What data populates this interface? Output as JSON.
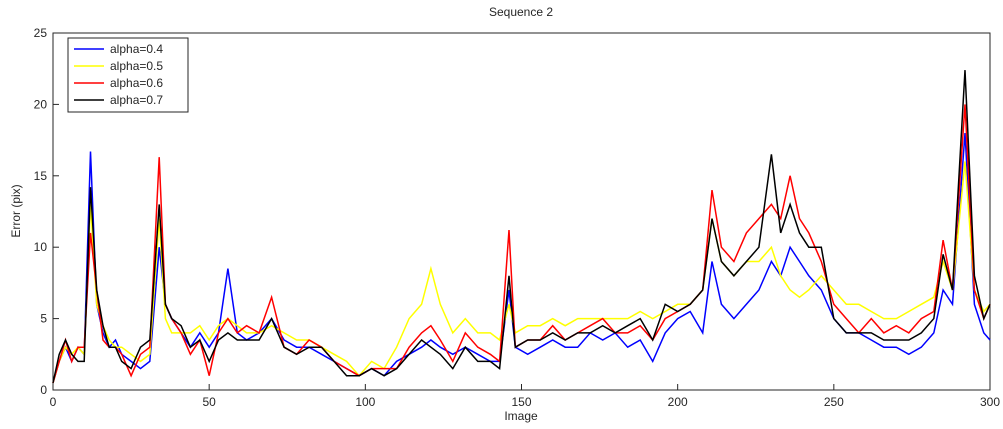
{
  "chart_data": {
    "type": "line",
    "title": "Sequence 2",
    "x_label": "Image",
    "y_label": "Error (pix)",
    "x": [
      0,
      2,
      4,
      6,
      8,
      10,
      12,
      14,
      16,
      18,
      20,
      22,
      25,
      28,
      31,
      34,
      36,
      38,
      41,
      44,
      47,
      50,
      53,
      56,
      59,
      62,
      66,
      70,
      74,
      78,
      82,
      86,
      90,
      94,
      98,
      102,
      106,
      110,
      114,
      118,
      121,
      124,
      128,
      132,
      136,
      140,
      143,
      146,
      148,
      152,
      156,
      160,
      164,
      168,
      172,
      176,
      180,
      184,
      188,
      192,
      196,
      200,
      204,
      208,
      211,
      214,
      218,
      222,
      226,
      230,
      233,
      236,
      239,
      242,
      246,
      250,
      254,
      258,
      262,
      266,
      270,
      274,
      278,
      282,
      285,
      288,
      292,
      295,
      298,
      300
    ],
    "series": [
      {
        "name": "alpha=0.4",
        "color": "#0000ff",
        "values": [
          0.5,
          2,
          3,
          2,
          3,
          2.5,
          16.7,
          6,
          4,
          3,
          3.5,
          2.5,
          2,
          1.5,
          2,
          10,
          6,
          5,
          4,
          3,
          4,
          3,
          4,
          8.5,
          4,
          3.5,
          4,
          5,
          3.5,
          3,
          3,
          2.5,
          2,
          1.5,
          1,
          1.5,
          1,
          2,
          2.5,
          3,
          3.5,
          3,
          2.5,
          3,
          2.5,
          2,
          2,
          7,
          3,
          2.5,
          3,
          3.5,
          3,
          3,
          4,
          3.5,
          4,
          3,
          3.5,
          2,
          4,
          5,
          5.5,
          4,
          9,
          6,
          5,
          6,
          7,
          9,
          8,
          10,
          9,
          8,
          7,
          5,
          4,
          4,
          3.5,
          3,
          3,
          2.5,
          3,
          4,
          7,
          6,
          18,
          6,
          4,
          3.5
        ]
      },
      {
        "name": "alpha=0.5",
        "color": "#ffff00",
        "values": [
          0.5,
          2,
          3,
          2.5,
          3,
          2.5,
          13,
          6,
          4.5,
          3.5,
          3,
          3,
          2.5,
          2,
          2.5,
          12,
          5,
          4,
          4,
          4,
          4.5,
          3.5,
          4.5,
          5,
          4.5,
          4,
          4,
          4.5,
          4,
          3.5,
          3.5,
          3,
          2.5,
          2,
          1,
          2,
          1.5,
          3,
          5,
          6,
          8.5,
          6,
          4,
          5,
          4,
          4,
          3.5,
          6,
          4,
          4.5,
          4.5,
          5,
          4.5,
          5,
          5,
          5,
          5,
          5,
          5.5,
          5,
          5.5,
          6,
          6,
          7,
          12,
          9,
          8,
          9,
          9,
          10,
          8,
          7,
          6.5,
          7,
          8,
          7,
          6,
          6,
          5.5,
          5,
          5,
          5.5,
          6,
          6.5,
          9,
          7,
          16,
          7,
          5.5,
          6
        ]
      },
      {
        "name": "alpha=0.6",
        "color": "#ff0000",
        "values": [
          0.5,
          2,
          3.5,
          2,
          3,
          3,
          11,
          7,
          3.5,
          3,
          3,
          2.5,
          1,
          2.5,
          3,
          16.3,
          6,
          5,
          4,
          2.5,
          3.5,
          1,
          4,
          5,
          4,
          4.5,
          4,
          6.5,
          3,
          2.5,
          3.5,
          3,
          2,
          1.5,
          1,
          1.5,
          1.5,
          1.5,
          3,
          4,
          4.5,
          3.5,
          2,
          4,
          3,
          2.5,
          2,
          11.2,
          3,
          3.5,
          3.5,
          4.5,
          3.5,
          4,
          4.5,
          5,
          4,
          4,
          4.5,
          3.5,
          5,
          5.5,
          6,
          7,
          14,
          10,
          9,
          11,
          12,
          13,
          12,
          15,
          12,
          11,
          9,
          6,
          5,
          4,
          5,
          4,
          4.5,
          4,
          5,
          5.5,
          10.5,
          7,
          20,
          7,
          5,
          6
        ]
      },
      {
        "name": "alpha=0.7",
        "color": "#000000",
        "values": [
          0.5,
          2.5,
          3.5,
          2.5,
          2,
          2,
          14.2,
          7,
          4.5,
          3,
          3,
          2,
          1.5,
          3,
          3.5,
          13,
          6,
          5,
          4.5,
          3,
          3.5,
          2,
          3.5,
          4,
          3.5,
          3.5,
          3.5,
          5,
          3,
          2.5,
          3,
          3,
          2,
          1,
          1,
          1.5,
          1,
          1.5,
          2.5,
          3.5,
          3,
          2.5,
          1.5,
          3,
          2,
          2,
          1.5,
          8,
          3,
          3.5,
          3.5,
          4,
          3.5,
          4,
          4,
          4.5,
          4,
          4.5,
          5,
          3.5,
          6,
          5.5,
          6,
          7,
          12,
          9,
          8,
          9,
          10,
          16.5,
          11,
          13,
          11,
          10,
          10,
          5,
          4,
          4,
          4,
          3.5,
          3.5,
          3.5,
          4,
          5,
          9.5,
          7,
          22.4,
          8,
          5,
          6
        ]
      }
    ],
    "xlim": [
      0,
      300
    ],
    "xticks": [
      0,
      50,
      100,
      150,
      200,
      250,
      300
    ],
    "ylim": [
      0,
      25
    ],
    "yticks": [
      0,
      5,
      10,
      15,
      20,
      25
    ],
    "legend": "upper left"
  }
}
